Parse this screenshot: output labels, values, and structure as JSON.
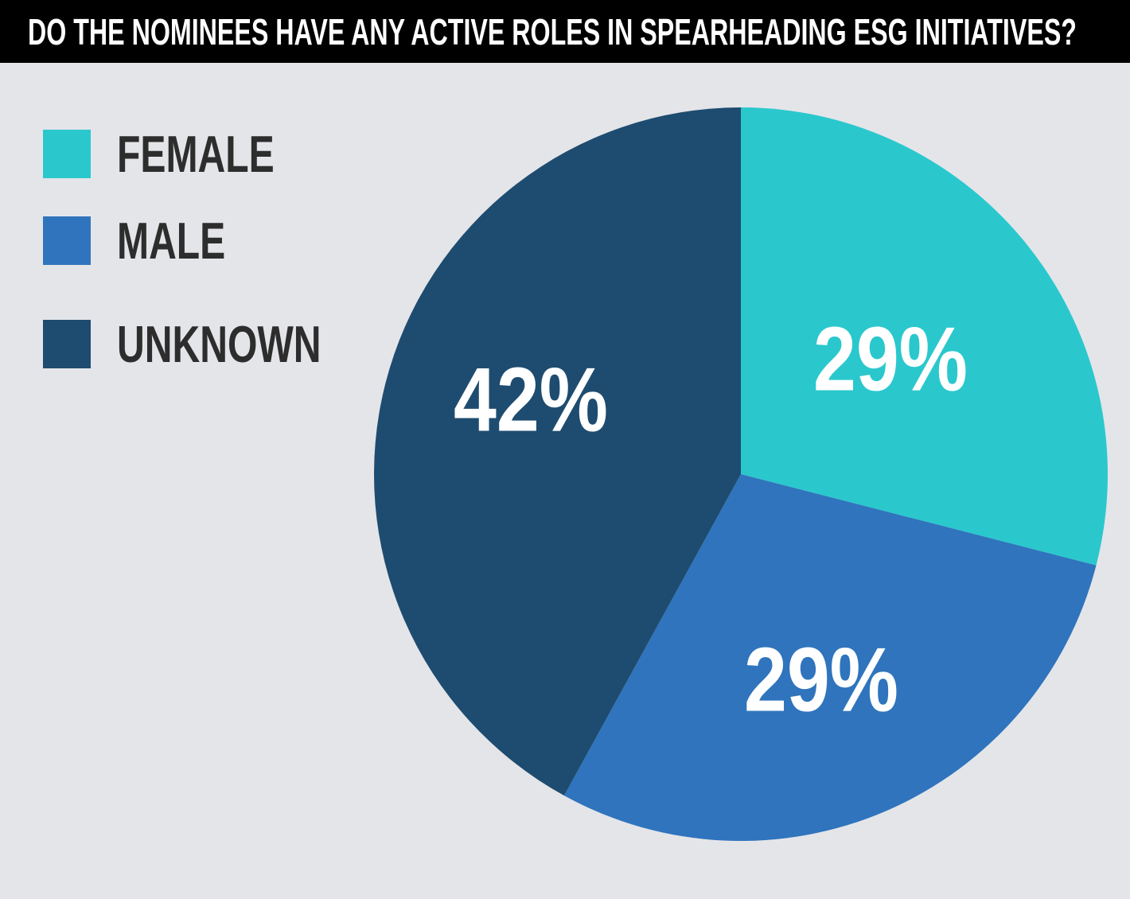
{
  "title": "DO THE NOMINEES HAVE ANY ACTIVE ROLES IN SPEARHEADING ESG INITIATIVES?",
  "colors": {
    "page_bg": "#e4e5e9",
    "banner_bg": "#000000",
    "banner_text": "#ffffff",
    "legend_text": "#2d2d2d",
    "slice_label_text": "#ffffff",
    "female": "#2ac8cd",
    "male": "#2f74bd",
    "unknown": "#1e4c70"
  },
  "legend": {
    "items": [
      {
        "label": "FEMALE",
        "color": "#2ac8cd"
      },
      {
        "label": "MALE",
        "color": "#2f74bd"
      },
      {
        "label": "UNKNOWN",
        "color": "#1e4c70"
      }
    ]
  },
  "chart_data": {
    "type": "pie",
    "title": "DO THE NOMINEES HAVE ANY ACTIVE ROLES IN SPEARHEADING ESG INITIATIVES?",
    "categories": [
      "FEMALE",
      "MALE",
      "UNKNOWN"
    ],
    "values": [
      29,
      29,
      42
    ],
    "unit": "percent",
    "labels": [
      "29%",
      "29%",
      "42%"
    ],
    "colors": [
      "#2ac8cd",
      "#2f74bd",
      "#1e4c70"
    ],
    "start_angle_deg": 0,
    "direction": "clockwise",
    "legend_position": "top-left",
    "data_labels": "inside"
  }
}
